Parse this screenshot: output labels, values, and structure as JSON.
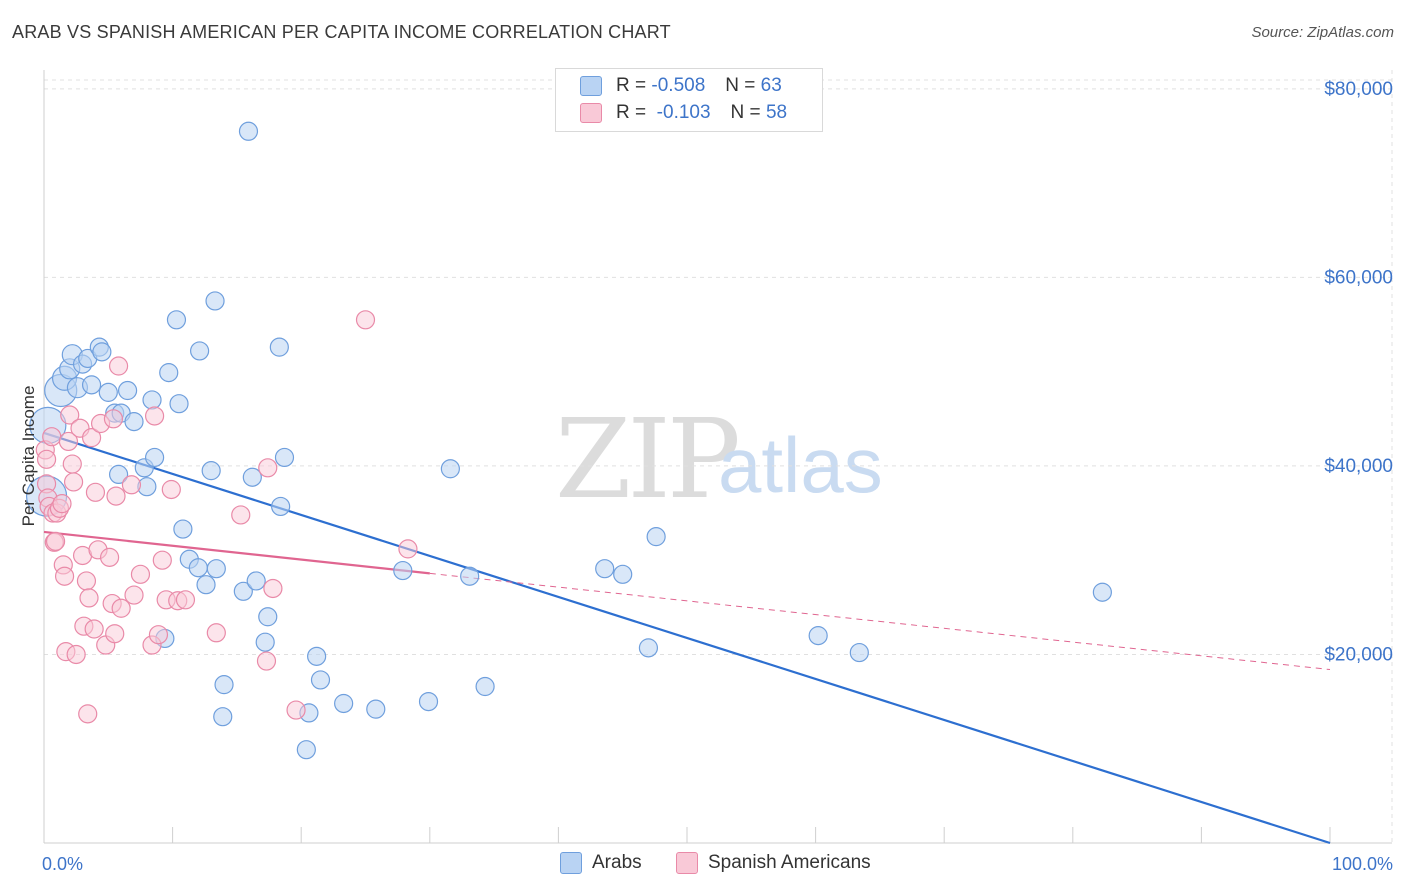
{
  "title": "ARAB VS SPANISH AMERICAN PER CAPITA INCOME CORRELATION CHART",
  "source": "Source: ZipAtlas.com",
  "watermark": {
    "zip": "ZIP",
    "atlas": "atlas"
  },
  "legend": {
    "rows": [
      {
        "r_label": "R = ",
        "r_value": "-0.508",
        "n_label": "N = ",
        "n_value": "63"
      },
      {
        "r_label": "R = ",
        "r_value": "-0.103",
        "n_label": "N = ",
        "n_value": "58"
      }
    ]
  },
  "bottom_legend": {
    "series1": "Arabs",
    "series2": "Spanish Americans"
  },
  "colors": {
    "arab_fill": "#b9d3f3",
    "arab_stroke": "#6f9fdd",
    "arab_line": "#2d6fd0",
    "spanish_fill": "#f9c9d7",
    "spanish_stroke": "#e98aa8",
    "spanish_line": "#e06590",
    "grid": "#e0e0e0",
    "axis_text": "#3d74c9"
  },
  "chart_data": {
    "type": "scatter",
    "title": "ARAB VS SPANISH AMERICAN PER CAPITA INCOME CORRELATION CHART",
    "xlabel": "",
    "ylabel": "Per Capita Income",
    "xlim": [
      0,
      100
    ],
    "ylim": [
      0,
      82000
    ],
    "x_tick_labels": [
      "0.0%",
      "100.0%"
    ],
    "y_ticks": [
      20000,
      40000,
      60000,
      80000
    ],
    "y_tick_labels": [
      "$20,000",
      "$40,000",
      "$60,000",
      "$80,000"
    ],
    "grid": true,
    "series": [
      {
        "name": "Arabs",
        "points": [
          [
            0.3,
            44300,
            18
          ],
          [
            0.2,
            36800,
            20
          ],
          [
            1.3,
            48000,
            16
          ],
          [
            1.6,
            49300,
            12
          ],
          [
            2.0,
            50300,
            10
          ],
          [
            2.2,
            51800,
            10
          ],
          [
            2.6,
            48300,
            10
          ],
          [
            3.0,
            50800,
            9
          ],
          [
            3.4,
            51400,
            9
          ],
          [
            3.7,
            48600,
            9
          ],
          [
            4.3,
            52600,
            9
          ],
          [
            4.5,
            52100,
            9
          ],
          [
            5.0,
            47800,
            9
          ],
          [
            5.5,
            45600,
            9
          ],
          [
            6.0,
            45600,
            9
          ],
          [
            6.5,
            48000,
            9
          ],
          [
            7.0,
            44700,
            9
          ],
          [
            8.4,
            47000,
            9
          ],
          [
            9.7,
            49900,
            9
          ],
          [
            10.3,
            55500,
            9
          ],
          [
            10.5,
            46600,
            9
          ],
          [
            12.1,
            52200,
            9
          ],
          [
            13.3,
            57500,
            9
          ],
          [
            15.9,
            75500,
            9
          ],
          [
            18.3,
            52600,
            9
          ],
          [
            5.8,
            39100,
            9
          ],
          [
            7.8,
            39800,
            9
          ],
          [
            8.6,
            40900,
            9
          ],
          [
            8.0,
            37800,
            9
          ],
          [
            13.0,
            39500,
            9
          ],
          [
            16.2,
            38800,
            9
          ],
          [
            18.7,
            40900,
            9
          ],
          [
            18.4,
            35700,
            9
          ],
          [
            10.8,
            33300,
            9
          ],
          [
            11.3,
            30100,
            9
          ],
          [
            12.0,
            29200,
            9
          ],
          [
            12.6,
            27400,
            9
          ],
          [
            13.4,
            29100,
            9
          ],
          [
            15.5,
            26700,
            9
          ],
          [
            16.5,
            27800,
            9
          ],
          [
            17.4,
            24000,
            9
          ],
          [
            17.2,
            21300,
            9
          ],
          [
            9.4,
            21700,
            9
          ],
          [
            14.0,
            16800,
            9
          ],
          [
            13.9,
            13400,
            9
          ],
          [
            21.2,
            19800,
            9
          ],
          [
            21.5,
            17300,
            9
          ],
          [
            20.6,
            13800,
            9
          ],
          [
            20.4,
            9900,
            9
          ],
          [
            23.3,
            14800,
            9
          ],
          [
            25.8,
            14200,
            9
          ],
          [
            27.9,
            28900,
            9
          ],
          [
            29.9,
            15000,
            9
          ],
          [
            31.6,
            39700,
            9
          ],
          [
            33.1,
            28300,
            9
          ],
          [
            34.3,
            16600,
            9
          ],
          [
            43.6,
            29100,
            9
          ],
          [
            45.0,
            28500,
            9
          ],
          [
            47.0,
            20700,
            9
          ],
          [
            47.6,
            32500,
            9
          ],
          [
            60.2,
            22000,
            9
          ],
          [
            63.4,
            20200,
            9
          ],
          [
            82.3,
            26600,
            9
          ]
        ]
      },
      {
        "name": "Spanish Americans",
        "points": [
          [
            0.1,
            41700,
            9
          ],
          [
            0.2,
            40700,
            9
          ],
          [
            0.2,
            38100,
            9
          ],
          [
            0.3,
            36600,
            9
          ],
          [
            0.4,
            35700,
            9
          ],
          [
            0.6,
            43100,
            9
          ],
          [
            0.7,
            35000,
            9
          ],
          [
            0.8,
            31900,
            9
          ],
          [
            1.0,
            35000,
            9
          ],
          [
            1.2,
            35500,
            9
          ],
          [
            1.4,
            36000,
            9
          ],
          [
            1.5,
            29500,
            9
          ],
          [
            1.6,
            28300,
            9
          ],
          [
            1.7,
            20300,
            9
          ],
          [
            1.9,
            42600,
            9
          ],
          [
            2.0,
            45400,
            9
          ],
          [
            2.2,
            40200,
            9
          ],
          [
            2.3,
            38300,
            9
          ],
          [
            2.5,
            20000,
            9
          ],
          [
            2.8,
            44000,
            9
          ],
          [
            3.0,
            30500,
            9
          ],
          [
            3.1,
            23000,
            9
          ],
          [
            3.3,
            27800,
            9
          ],
          [
            3.4,
            13700,
            9
          ],
          [
            3.5,
            26000,
            9
          ],
          [
            3.7,
            43000,
            9
          ],
          [
            3.9,
            22700,
            9
          ],
          [
            4.0,
            37200,
            9
          ],
          [
            4.2,
            31100,
            9
          ],
          [
            4.4,
            44500,
            9
          ],
          [
            4.8,
            21000,
            9
          ],
          [
            5.1,
            30300,
            9
          ],
          [
            5.3,
            25400,
            9
          ],
          [
            5.4,
            45000,
            9
          ],
          [
            5.5,
            22200,
            9
          ],
          [
            5.6,
            36800,
            9
          ],
          [
            5.8,
            50600,
            9
          ],
          [
            6.0,
            24900,
            9
          ],
          [
            6.8,
            38000,
            9
          ],
          [
            7.0,
            26300,
            9
          ],
          [
            7.5,
            28500,
            9
          ],
          [
            8.4,
            21000,
            9
          ],
          [
            8.6,
            45300,
            9
          ],
          [
            8.9,
            22100,
            9
          ],
          [
            9.2,
            30000,
            9
          ],
          [
            9.5,
            25800,
            9
          ],
          [
            9.9,
            37500,
            9
          ],
          [
            10.4,
            25700,
            9
          ],
          [
            11.0,
            25800,
            9
          ],
          [
            13.4,
            22300,
            9
          ],
          [
            15.3,
            34800,
            9
          ],
          [
            17.4,
            39800,
            9
          ],
          [
            17.3,
            19300,
            9
          ],
          [
            17.8,
            27000,
            9
          ],
          [
            19.6,
            14100,
            9
          ],
          [
            25.0,
            55500,
            9
          ],
          [
            28.3,
            31200,
            9
          ],
          [
            0.9,
            32000,
            9
          ]
        ]
      }
    ],
    "trend_lines": [
      {
        "series": "Arabs",
        "from": [
          0,
          43500
        ],
        "to": [
          100,
          0
        ],
        "dashed_from": null
      },
      {
        "series": "Spanish Americans",
        "from": [
          0,
          33000
        ],
        "to": [
          30,
          28600
        ],
        "extended_to": [
          100,
          18400
        ]
      }
    ]
  }
}
